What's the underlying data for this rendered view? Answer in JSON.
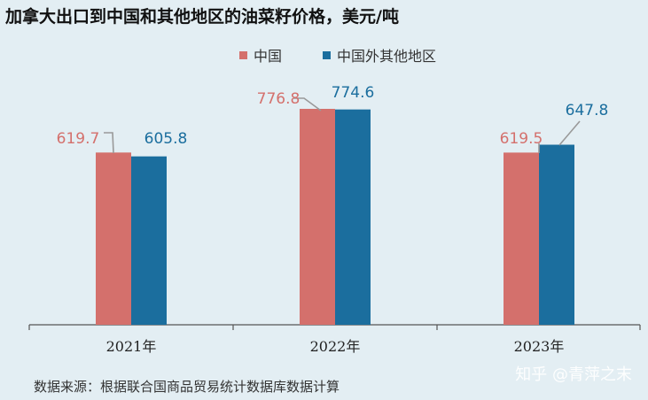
{
  "title": "加拿大出口到中国和其他地区的油菜籽价格，美元/吨",
  "source": "数据来源：根据联合国商品贸易统计数据库数据计算",
  "watermark": "知乎 @青萍之末",
  "colors": {
    "china": "#d4706c",
    "other": "#1b6e9e",
    "axis": "#555555",
    "leader": "#999999"
  },
  "chart_data": {
    "type": "bar",
    "categories": [
      "2021年",
      "2022年",
      "2023年"
    ],
    "series": [
      {
        "name": "中国",
        "values": [
          619.7,
          776.8,
          619.5
        ],
        "color": "#d4706c"
      },
      {
        "name": "中国外其他地区",
        "values": [
          605.8,
          774.6,
          647.8
        ],
        "color": "#1b6e9e"
      }
    ],
    "legend_position": "top-center",
    "grid": false
  }
}
